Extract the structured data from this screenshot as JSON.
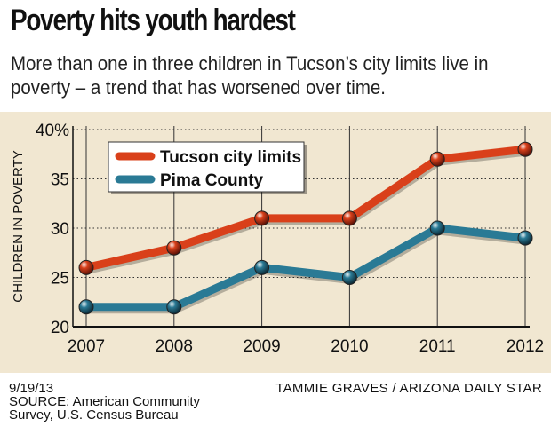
{
  "header": {
    "title": "Poverty hits youth hardest",
    "subtitle": "More than one in three children in Tucson’s city limits live in poverty – a trend that has worsened over time."
  },
  "chart_data": {
    "type": "line",
    "title": "Poverty hits youth hardest",
    "ylabel": "CHILDREN IN POVERTY",
    "xlabel": "",
    "x": [
      "2007",
      "2008",
      "2009",
      "2010",
      "2011",
      "2012"
    ],
    "ylim": [
      20,
      40
    ],
    "yticks": [
      20,
      25,
      30,
      35,
      40
    ],
    "ytick_labels": [
      "20",
      "25",
      "30",
      "35",
      "40%"
    ],
    "grid": true,
    "legend_position": "top-left",
    "series": [
      {
        "name": "Tucson city limits",
        "values": [
          26,
          28,
          31,
          31,
          37,
          38
        ],
        "color": "#d9401a"
      },
      {
        "name": "Pima County",
        "values": [
          22,
          22,
          26,
          25,
          30,
          29
        ],
        "color": "#2a7a95"
      }
    ]
  },
  "footer": {
    "date": "9/19/13",
    "source_line1": "SOURCE: American Community",
    "source_line2": "Survey, U.S. Census Bureau",
    "credit": "TAMMIE GRAVES / ARIZONA DAILY STAR"
  },
  "colors": {
    "background": "#f1e7d1",
    "grid": "#333333",
    "tucson": "#d9401a",
    "pima": "#2a7a95"
  }
}
